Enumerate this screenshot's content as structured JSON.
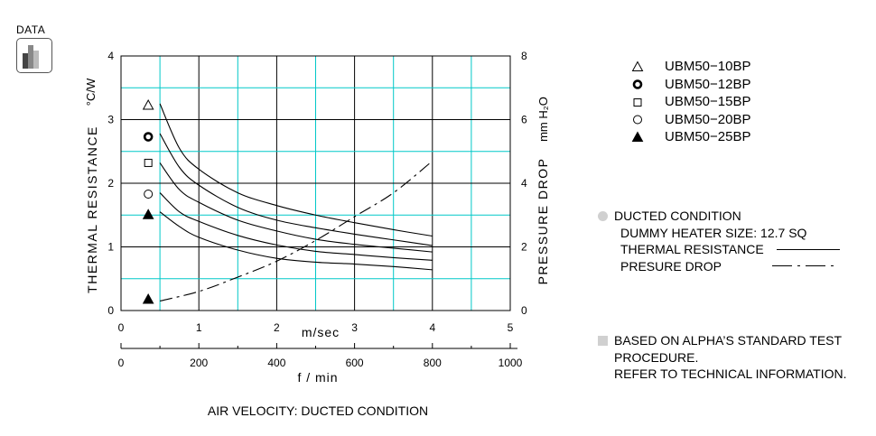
{
  "logo": {
    "text": "DATA"
  },
  "legend": [
    {
      "label": "UBM50−10BP",
      "marker": "triangle-open"
    },
    {
      "label": "UBM50−12BP",
      "marker": "circle-bold"
    },
    {
      "label": "UBM50−15BP",
      "marker": "square-open"
    },
    {
      "label": "UBM50−20BP",
      "marker": "circle-open"
    },
    {
      "label": "UBM50−25BP",
      "marker": "triangle-filled"
    }
  ],
  "conditions": {
    "title": "DUCTED CONDITION",
    "heater": "DUMMY HEATER SIZE: 12.7 SQ",
    "thermal": "THERMAL RESISTANCE",
    "pressure": "PRESURE DROP"
  },
  "note": {
    "line1": "BASED ON ALPHA’S STANDARD TEST",
    "line2": "PROCEDURE.",
    "line3": "REFER TO TECHNICAL INFORMATION."
  },
  "chart_data": {
    "type": "line",
    "title": "",
    "xlabel": "AIR VELOCITY:  DUCTED CONDITION",
    "x_axis_ms": {
      "label": "m/sec",
      "range": [
        0,
        5
      ],
      "ticks": [
        "0",
        "1",
        "2",
        "3",
        "4",
        "5"
      ]
    },
    "x_axis_fpm": {
      "label": "f / min",
      "range": [
        0,
        1000
      ],
      "ticks": [
        "0",
        "200",
        "400",
        "600",
        "800",
        "1000"
      ]
    },
    "y_left": {
      "label": "THERMAL  RESISTANCE",
      "unit": "°C/W",
      "range": [
        0,
        4
      ],
      "ticks": [
        "0",
        "1",
        "2",
        "3",
        "4"
      ]
    },
    "y_right": {
      "label": "PRESSURE  DROP",
      "unit": "mm H₂O",
      "range": [
        0,
        8
      ],
      "ticks": [
        "0",
        "2",
        "4",
        "6",
        "8"
      ]
    },
    "grid": true,
    "series": [
      {
        "name": "UBM50−10BP",
        "axis": "left",
        "x": [
          0.5,
          0.75,
          1.0,
          1.5,
          2.0,
          2.5,
          3.0,
          3.5,
          4.0
        ],
        "values": [
          3.25,
          2.55,
          2.22,
          1.85,
          1.65,
          1.5,
          1.38,
          1.27,
          1.17
        ]
      },
      {
        "name": "UBM50−12BP",
        "axis": "left",
        "x": [
          0.5,
          0.75,
          1.0,
          1.5,
          2.0,
          2.5,
          3.0,
          3.5,
          4.0
        ],
        "values": [
          2.78,
          2.25,
          1.97,
          1.62,
          1.42,
          1.3,
          1.2,
          1.11,
          1.02
        ]
      },
      {
        "name": "UBM50−15BP",
        "axis": "left",
        "x": [
          0.5,
          0.75,
          1.0,
          1.5,
          2.0,
          2.5,
          3.0,
          3.5,
          4.0
        ],
        "values": [
          2.32,
          1.9,
          1.7,
          1.42,
          1.25,
          1.12,
          1.04,
          0.98,
          0.92
        ]
      },
      {
        "name": "UBM50−20BP",
        "axis": "left",
        "x": [
          0.5,
          0.75,
          1.0,
          1.5,
          2.0,
          2.5,
          3.0,
          3.5,
          4.0
        ],
        "values": [
          1.85,
          1.55,
          1.4,
          1.18,
          1.03,
          0.93,
          0.88,
          0.83,
          0.79
        ]
      },
      {
        "name": "UBM50−25BP",
        "axis": "left",
        "x": [
          0.5,
          0.75,
          1.0,
          1.5,
          2.0,
          2.5,
          3.0,
          3.5,
          4.0
        ],
        "values": [
          1.55,
          1.32,
          1.15,
          0.95,
          0.82,
          0.76,
          0.73,
          0.69,
          0.64
        ]
      },
      {
        "name": "PRESURE DROP",
        "axis": "right",
        "dashed": true,
        "x": [
          0.5,
          1.0,
          1.5,
          2.0,
          2.5,
          3.0,
          3.5,
          4.0
        ],
        "values": [
          0.3,
          0.6,
          1.05,
          1.55,
          2.2,
          2.95,
          3.7,
          4.7
        ]
      }
    ],
    "markers": [
      {
        "marker": "triangle-open",
        "x": 0.35,
        "y": 3.22
      },
      {
        "marker": "circle-bold",
        "x": 0.35,
        "y": 2.73
      },
      {
        "marker": "square-open",
        "x": 0.35,
        "y": 2.32
      },
      {
        "marker": "circle-open",
        "x": 0.35,
        "y": 1.83
      },
      {
        "marker": "triangle-filled",
        "x": 0.35,
        "y": 1.5
      },
      {
        "marker": "triangle-filled",
        "x": 0.35,
        "y": 0.17
      }
    ]
  }
}
